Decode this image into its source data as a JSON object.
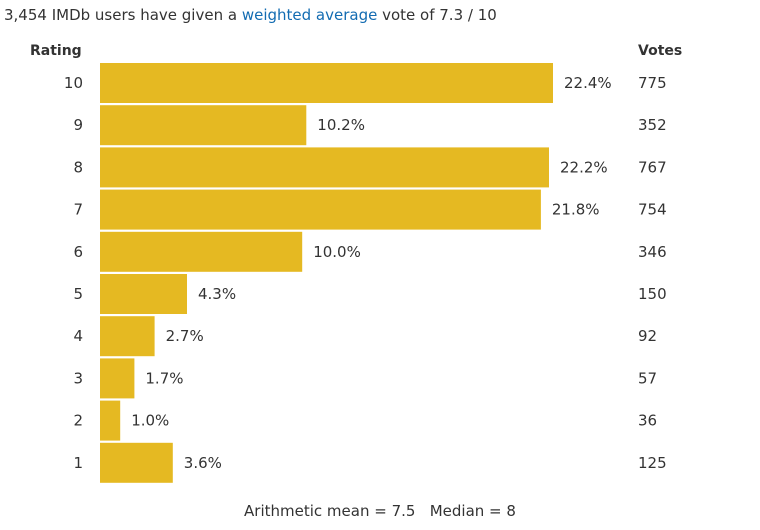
{
  "summary": {
    "prefix": "3,454 IMDb users have given a ",
    "link_text": "weighted average",
    "suffix": " vote of 7.3 / 10"
  },
  "columns": {
    "rating_header": "Rating",
    "votes_header": "Votes"
  },
  "chart_data": {
    "type": "bar",
    "orientation": "horizontal",
    "categories": [
      "10",
      "9",
      "8",
      "7",
      "6",
      "5",
      "4",
      "3",
      "2",
      "1"
    ],
    "values": [
      22.4,
      10.2,
      22.2,
      21.8,
      10.0,
      4.3,
      2.7,
      1.7,
      1.0,
      3.6
    ],
    "value_labels": [
      "22.4%",
      "10.2%",
      "22.2%",
      "21.8%",
      "10.0%",
      "4.3%",
      "2.7%",
      "1.7%",
      "1.0%",
      "3.6%"
    ],
    "votes": [
      "775",
      "352",
      "767",
      "754",
      "346",
      "150",
      "92",
      "57",
      "36",
      "125"
    ],
    "bar_color": "#e5b922",
    "grid": false
  },
  "footer": {
    "mean_text": "Arithmetic mean = 7.5",
    "median_text": "Median = 8"
  }
}
